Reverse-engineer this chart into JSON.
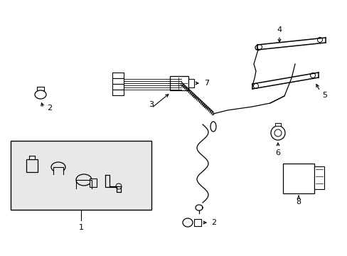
{
  "bg_color": "#ffffff",
  "line_color": "#000000",
  "lw": 1.0,
  "fs": 7,
  "figsize": [
    4.89,
    3.6
  ],
  "dpi": 100
}
